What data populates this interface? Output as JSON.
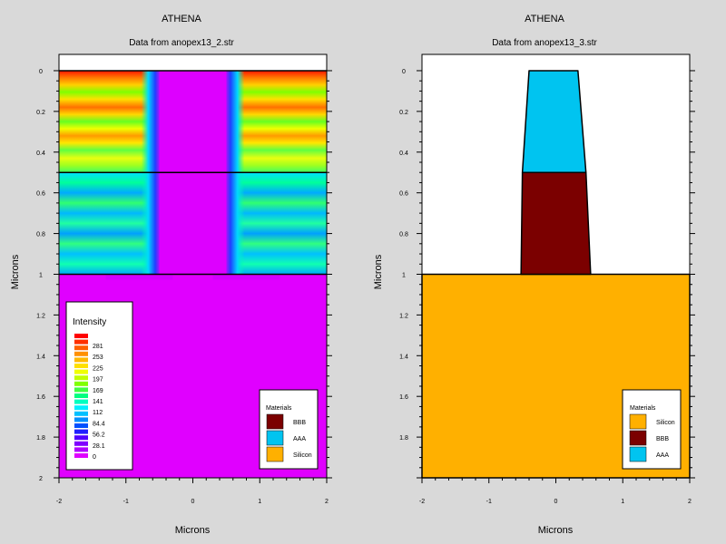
{
  "colors": {
    "silicon": "#ffb000",
    "bbb": "#7b0000",
    "aaa": "#00c4f0",
    "background": "#d9d9d9"
  },
  "chart_data": [
    {
      "type": "heatmap",
      "app_title": "ATHENA",
      "title": "Data from anopex13_2.str",
      "xlabel": "Microns",
      "ylabel": "Microns",
      "xlim": [
        -2,
        2
      ],
      "ylim": [
        -0.08,
        2
      ],
      "y_inverted": true,
      "xticks": [
        -2,
        -1,
        0,
        1,
        2
      ],
      "yticks": [
        0,
        0.2,
        0.4,
        0.6,
        0.8,
        1,
        1.2,
        1.4,
        1.6,
        1.8,
        2
      ],
      "xtick_labels": [
        "-2",
        "-1",
        "0",
        "1",
        "2"
      ],
      "ytick_labels": [
        "0",
        "0.2",
        "0.4",
        "0.6",
        "0.8",
        "1",
        "1.2",
        "1.4",
        "1.6",
        "1.8",
        "2"
      ],
      "interfaces_y": [
        0,
        0.5,
        1
      ],
      "center_channel": {
        "x_min": -0.5,
        "x_max": 0.5,
        "y_min": 0,
        "y_max": 1
      },
      "legend": {
        "title": "Intensity",
        "levels": [
          "281",
          "253",
          "225",
          "197",
          "169",
          "141",
          "112",
          "84.4",
          "56.2",
          "28.1",
          "0"
        ]
      },
      "materials_legend": {
        "title": "Materials",
        "items": [
          {
            "label": "BBB",
            "color": "#7b0000"
          },
          {
            "label": "AAA",
            "color": "#00c4f0"
          },
          {
            "label": "Silicon",
            "color": "#ffb000"
          }
        ]
      }
    },
    {
      "type": "diagram",
      "app_title": "ATHENA",
      "title": "Data from anopex13_3.str",
      "xlabel": "Microns",
      "ylabel": "Microns",
      "xlim": [
        -2,
        2
      ],
      "ylim": [
        -0.08,
        2
      ],
      "y_inverted": true,
      "xticks": [
        -2,
        -1,
        0,
        1,
        2
      ],
      "yticks": [
        0,
        0.2,
        0.4,
        0.6,
        0.8,
        1,
        1.2,
        1.4,
        1.6,
        1.8
      ],
      "xtick_labels": [
        "-2",
        "-1",
        "0",
        "1",
        "2"
      ],
      "ytick_labels": [
        "0",
        "0.2",
        "0.4",
        "0.6",
        "0.8",
        "1",
        "1.2",
        "1.4",
        "1.6",
        "1.8"
      ],
      "regions": [
        {
          "material": "Silicon",
          "polygon": [
            [
              -2,
              1
            ],
            [
              2,
              1
            ],
            [
              2,
              2
            ],
            [
              -2,
              2
            ]
          ]
        },
        {
          "material": "BBB",
          "polygon": [
            [
              -0.5,
              0.5
            ],
            [
              0.45,
              0.5
            ],
            [
              0.52,
              1
            ],
            [
              -0.52,
              1
            ]
          ]
        },
        {
          "material": "AAA",
          "polygon": [
            [
              -0.4,
              0
            ],
            [
              0.33,
              0
            ],
            [
              0.45,
              0.5
            ],
            [
              -0.5,
              0.5
            ]
          ]
        }
      ],
      "materials_legend": {
        "title": "Materials",
        "items": [
          {
            "label": "Silicon",
            "color": "#ffb000"
          },
          {
            "label": "BBB",
            "color": "#7b0000"
          },
          {
            "label": "AAA",
            "color": "#00c4f0"
          }
        ]
      }
    }
  ]
}
